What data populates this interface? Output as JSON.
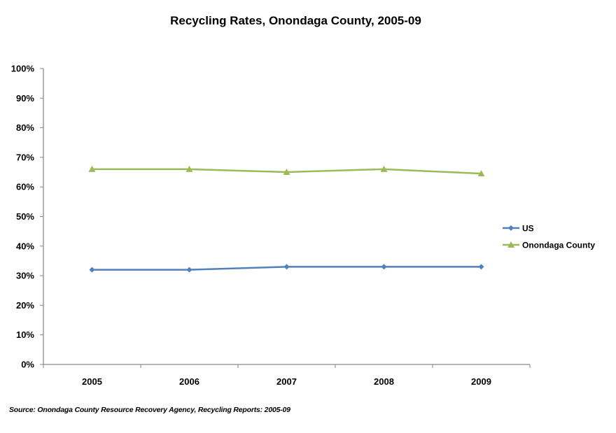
{
  "chart_data": {
    "type": "line",
    "title": "Recycling Rates, Onondaga County, 2005-09",
    "xlabel": "",
    "ylabel": "",
    "categories": [
      "2005",
      "2006",
      "2007",
      "2008",
      "2009"
    ],
    "ylim": [
      0,
      100
    ],
    "yticks": [
      0,
      10,
      20,
      30,
      40,
      50,
      60,
      70,
      80,
      90,
      100
    ],
    "ytick_labels": [
      "0%",
      "10%",
      "20%",
      "30%",
      "40%",
      "50%",
      "60%",
      "70%",
      "80%",
      "90%",
      "100%"
    ],
    "grid": false,
    "legend_position": "right",
    "series": [
      {
        "name": "US",
        "values": [
          32,
          32,
          33,
          33,
          33
        ],
        "color": "#4f81bd",
        "marker": "diamond"
      },
      {
        "name": "Onondaga County",
        "values": [
          66,
          66,
          65,
          66,
          64.5
        ],
        "color": "#9bbb59",
        "marker": "triangle"
      }
    ],
    "source_note": "Source: Onondaga County Resource Recovery Agency, Recycling Reports: 2005-09"
  },
  "colors": {
    "axis": "#868686",
    "us": "#4f81bd",
    "onondaga": "#9bbb59"
  }
}
